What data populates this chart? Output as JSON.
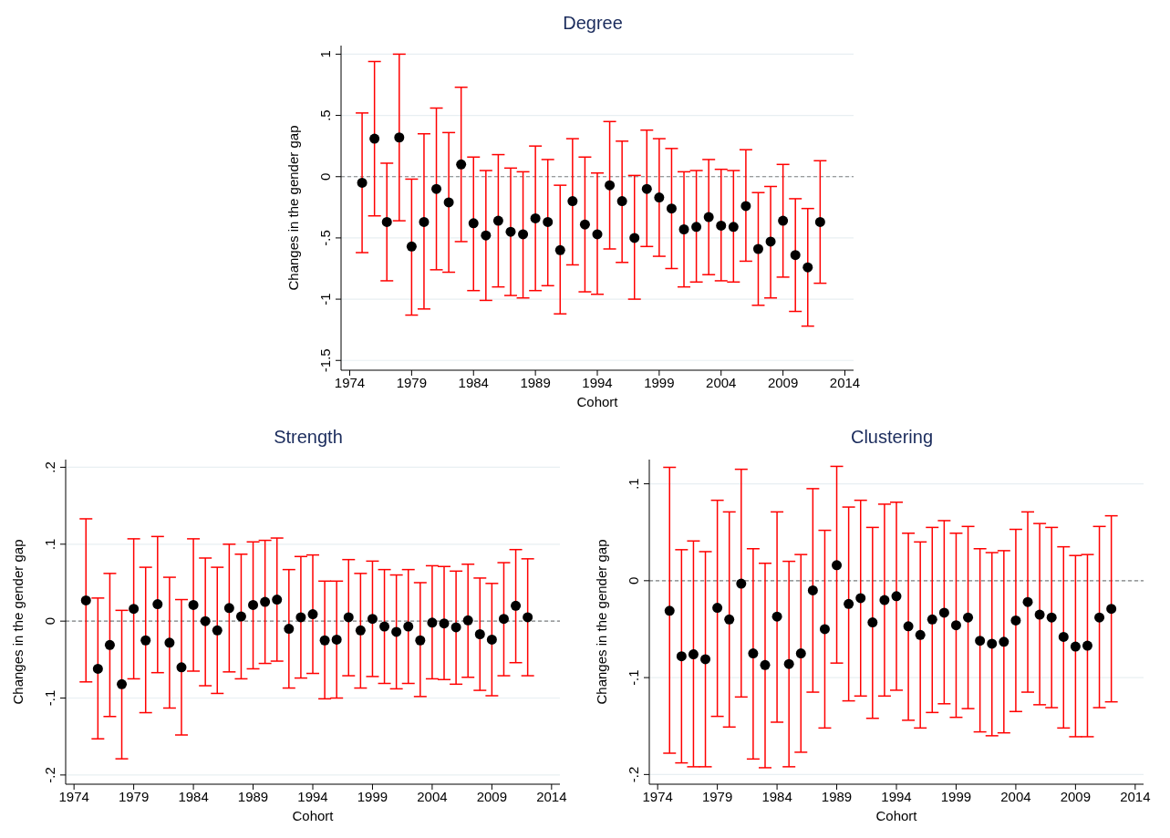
{
  "chart_data": [
    {
      "type": "scatter",
      "title": "Degree",
      "xlabel": "Cohort",
      "ylabel": "Changes in the gender gap",
      "marker": "circle",
      "grid": "y",
      "legend": false,
      "x": [
        1975,
        1976,
        1977,
        1978,
        1979,
        1980,
        1981,
        1982,
        1983,
        1984,
        1985,
        1986,
        1987,
        1988,
        1989,
        1990,
        1991,
        1992,
        1993,
        1994,
        1995,
        1996,
        1997,
        1998,
        1999,
        2000,
        2001,
        2002,
        2003,
        2004,
        2005,
        2006,
        2007,
        2008,
        2009,
        2010,
        2011,
        2012
      ],
      "xlim": [
        1973.3,
        2014.7
      ],
      "xticks": [
        1974,
        1979,
        1984,
        1989,
        1994,
        1999,
        2004,
        2009,
        2014
      ],
      "ylim": [
        -1.58,
        1.07
      ],
      "yticks": [
        {
          "value": -1.5,
          "label": "-1.5"
        },
        -1,
        {
          "value": -0.5,
          "label": "-.5"
        },
        0,
        {
          "value": 0.5,
          "label": ".5"
        },
        1
      ],
      "ref_lines": [
        {
          "axis": "y",
          "value": 0,
          "color": "#808080",
          "line_style": "dashed"
        }
      ],
      "series": [
        {
          "color": "#000000",
          "values": [
            -0.05,
            0.31,
            -0.37,
            0.32,
            -0.57,
            -0.37,
            -0.1,
            -0.21,
            0.1,
            -0.38,
            -0.48,
            -0.36,
            -0.45,
            -0.47,
            -0.34,
            -0.37,
            -0.6,
            -0.2,
            -0.39,
            -0.47,
            -0.07,
            -0.2,
            -0.5,
            -0.1,
            -0.17,
            -0.26,
            -0.43,
            -0.41,
            -0.33,
            -0.4,
            -0.41,
            -0.24,
            -0.59,
            -0.53,
            -0.36,
            -0.64,
            -0.74,
            -0.37
          ],
          "errors": [
            [
              -0.62,
              0.52
            ],
            [
              -0.32,
              0.94
            ],
            [
              -0.85,
              0.11
            ],
            [
              -0.36,
              1.0
            ],
            [
              -1.13,
              -0.02
            ],
            [
              -1.08,
              0.35
            ],
            [
              -0.76,
              0.56
            ],
            [
              -0.78,
              0.36
            ],
            [
              -0.53,
              0.73
            ],
            [
              -0.93,
              0.16
            ],
            [
              -1.01,
              0.05
            ],
            [
              -0.9,
              0.18
            ],
            [
              -0.97,
              0.07
            ],
            [
              -0.99,
              0.04
            ],
            [
              -0.93,
              0.25
            ],
            [
              -0.89,
              0.14
            ],
            [
              -1.12,
              -0.07
            ],
            [
              -0.72,
              0.31
            ],
            [
              -0.94,
              0.16
            ],
            [
              -0.96,
              0.03
            ],
            [
              -0.59,
              0.45
            ],
            [
              -0.7,
              0.29
            ],
            [
              -1.0,
              0.01
            ],
            [
              -0.57,
              0.38
            ],
            [
              -0.65,
              0.31
            ],
            [
              -0.75,
              0.23
            ],
            [
              -0.9,
              0.04
            ],
            [
              -0.86,
              0.05
            ],
            [
              -0.8,
              0.14
            ],
            [
              -0.85,
              0.06
            ],
            [
              -0.86,
              0.05
            ],
            [
              -0.69,
              0.22
            ],
            [
              -1.05,
              -0.13
            ],
            [
              -0.99,
              -0.08
            ],
            [
              -0.82,
              0.1
            ],
            [
              -1.1,
              -0.18
            ],
            [
              -1.22,
              -0.26
            ],
            [
              -0.87,
              0.13
            ]
          ]
        }
      ]
    },
    {
      "type": "scatter",
      "title": "Strength",
      "xlabel": "Cohort",
      "ylabel": "Changes in the gender gap",
      "marker": "circle",
      "grid": "y",
      "legend": false,
      "x": [
        1975,
        1976,
        1977,
        1978,
        1979,
        1980,
        1981,
        1982,
        1983,
        1984,
        1985,
        1986,
        1987,
        1988,
        1989,
        1990,
        1991,
        1992,
        1993,
        1994,
        1995,
        1996,
        1997,
        1998,
        1999,
        2000,
        2001,
        2002,
        2003,
        2004,
        2005,
        2006,
        2007,
        2008,
        2009,
        2010,
        2011,
        2012
      ],
      "xlim": [
        1973.3,
        2014.7
      ],
      "xticks": [
        1974,
        1979,
        1984,
        1989,
        1994,
        1999,
        2004,
        2009,
        2014
      ],
      "ylim": [
        -0.212,
        0.21
      ],
      "yticks": [
        {
          "value": -0.2,
          "label": "-.2"
        },
        {
          "value": -0.1,
          "label": "-.1"
        },
        0,
        {
          "value": 0.1,
          "label": ".1"
        },
        {
          "value": 0.2,
          "label": ".2"
        }
      ],
      "ref_lines": [
        {
          "axis": "y",
          "value": 0,
          "color": "#808080",
          "line_style": "dashed"
        }
      ],
      "series": [
        {
          "color": "#000000",
          "values": [
            0.027,
            -0.062,
            -0.031,
            -0.082,
            0.016,
            -0.025,
            0.022,
            -0.028,
            -0.06,
            0.021,
            0.0,
            -0.012,
            0.017,
            0.006,
            0.021,
            0.025,
            0.028,
            -0.01,
            0.005,
            0.009,
            -0.025,
            -0.024,
            0.005,
            -0.012,
            0.003,
            -0.007,
            -0.014,
            -0.007,
            -0.025,
            -0.002,
            -0.003,
            -0.008,
            0.001,
            -0.017,
            -0.024,
            0.003,
            0.02,
            0.005
          ],
          "errors": [
            [
              -0.079,
              0.133
            ],
            [
              -0.153,
              0.03
            ],
            [
              -0.124,
              0.062
            ],
            [
              -0.179,
              0.014
            ],
            [
              -0.075,
              0.107
            ],
            [
              -0.119,
              0.07
            ],
            [
              -0.067,
              0.11
            ],
            [
              -0.113,
              0.057
            ],
            [
              -0.148,
              0.028
            ],
            [
              -0.065,
              0.107
            ],
            [
              -0.084,
              0.082
            ],
            [
              -0.094,
              0.07
            ],
            [
              -0.066,
              0.1
            ],
            [
              -0.075,
              0.087
            ],
            [
              -0.062,
              0.103
            ],
            [
              -0.055,
              0.105
            ],
            [
              -0.052,
              0.108
            ],
            [
              -0.087,
              0.067
            ],
            [
              -0.074,
              0.084
            ],
            [
              -0.068,
              0.086
            ],
            [
              -0.101,
              0.052
            ],
            [
              -0.1,
              0.052
            ],
            [
              -0.071,
              0.08
            ],
            [
              -0.087,
              0.062
            ],
            [
              -0.072,
              0.078
            ],
            [
              -0.081,
              0.067
            ],
            [
              -0.088,
              0.06
            ],
            [
              -0.081,
              0.067
            ],
            [
              -0.098,
              0.05
            ],
            [
              -0.075,
              0.072
            ],
            [
              -0.076,
              0.071
            ],
            [
              -0.082,
              0.065
            ],
            [
              -0.073,
              0.074
            ],
            [
              -0.09,
              0.056
            ],
            [
              -0.097,
              0.049
            ],
            [
              -0.071,
              0.076
            ],
            [
              -0.054,
              0.093
            ],
            [
              -0.071,
              0.081
            ]
          ]
        }
      ]
    },
    {
      "type": "scatter",
      "title": "Clustering",
      "xlabel": "Cohort",
      "ylabel": "Changes in the gender gap",
      "marker": "circle",
      "grid": "y",
      "legend": false,
      "x": [
        1975,
        1976,
        1977,
        1978,
        1979,
        1980,
        1981,
        1982,
        1983,
        1984,
        1985,
        1986,
        1987,
        1988,
        1989,
        1990,
        1991,
        1992,
        1993,
        1994,
        1995,
        1996,
        1997,
        1998,
        1999,
        2000,
        2001,
        2002,
        2003,
        2004,
        2005,
        2006,
        2007,
        2008,
        2009,
        2010,
        2011,
        2012
      ],
      "xlim": [
        1973.3,
        2014.7
      ],
      "xticks": [
        1974,
        1979,
        1984,
        1989,
        1994,
        1999,
        2004,
        2009,
        2014
      ],
      "ylim": [
        -0.21,
        0.125
      ],
      "yticks": [
        {
          "value": -0.2,
          "label": "-.2"
        },
        {
          "value": -0.1,
          "label": "-.1"
        },
        0,
        {
          "value": 0.1,
          "label": ".1"
        }
      ],
      "ref_lines": [
        {
          "axis": "y",
          "value": 0,
          "color": "#808080",
          "line_style": "dashed"
        }
      ],
      "series": [
        {
          "color": "#000000",
          "values": [
            -0.031,
            -0.078,
            -0.076,
            -0.081,
            -0.028,
            -0.04,
            -0.003,
            -0.075,
            -0.087,
            -0.037,
            -0.086,
            -0.075,
            -0.01,
            -0.05,
            0.016,
            -0.024,
            -0.018,
            -0.043,
            -0.02,
            -0.016,
            -0.047,
            -0.056,
            -0.04,
            -0.033,
            -0.046,
            -0.038,
            -0.062,
            -0.065,
            -0.063,
            -0.041,
            -0.022,
            -0.035,
            -0.038,
            -0.058,
            -0.068,
            -0.067,
            -0.038,
            -0.029
          ],
          "errors": [
            [
              -0.178,
              0.117
            ],
            [
              -0.188,
              0.032
            ],
            [
              -0.192,
              0.041
            ],
            [
              -0.192,
              0.03
            ],
            [
              -0.14,
              0.083
            ],
            [
              -0.151,
              0.071
            ],
            [
              -0.12,
              0.115
            ],
            [
              -0.184,
              0.033
            ],
            [
              -0.193,
              0.018
            ],
            [
              -0.146,
              0.071
            ],
            [
              -0.192,
              0.02
            ],
            [
              -0.177,
              0.027
            ],
            [
              -0.115,
              0.095
            ],
            [
              -0.152,
              0.052
            ],
            [
              -0.085,
              0.118
            ],
            [
              -0.124,
              0.076
            ],
            [
              -0.119,
              0.083
            ],
            [
              -0.142,
              0.055
            ],
            [
              -0.119,
              0.079
            ],
            [
              -0.113,
              0.081
            ],
            [
              -0.144,
              0.049
            ],
            [
              -0.152,
              0.04
            ],
            [
              -0.136,
              0.055
            ],
            [
              -0.127,
              0.062
            ],
            [
              -0.141,
              0.049
            ],
            [
              -0.132,
              0.056
            ],
            [
              -0.156,
              0.033
            ],
            [
              -0.16,
              0.029
            ],
            [
              -0.157,
              0.031
            ],
            [
              -0.135,
              0.053
            ],
            [
              -0.115,
              0.071
            ],
            [
              -0.128,
              0.059
            ],
            [
              -0.131,
              0.055
            ],
            [
              -0.152,
              0.035
            ],
            [
              -0.161,
              0.026
            ],
            [
              -0.161,
              0.027
            ],
            [
              -0.131,
              0.056
            ],
            [
              -0.125,
              0.067
            ]
          ]
        }
      ]
    }
  ]
}
